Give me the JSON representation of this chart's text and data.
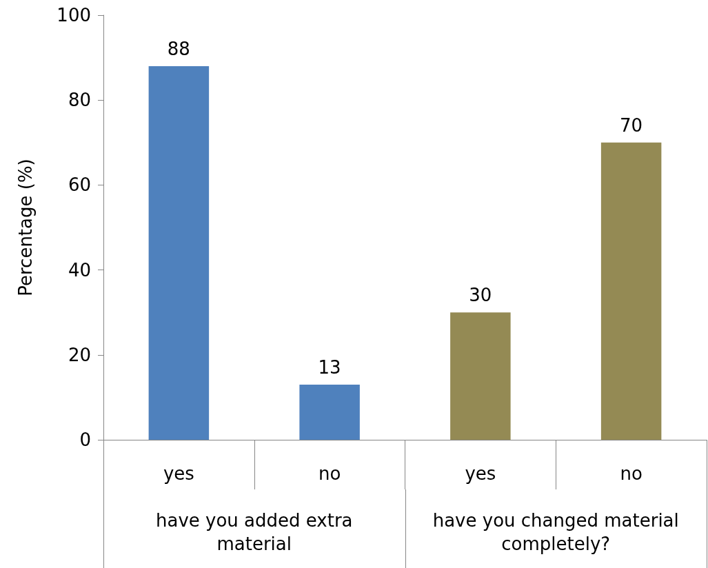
{
  "chart_data": {
    "type": "bar",
    "ylabel": "Percentage (%)",
    "categories": [
      "yes",
      "no",
      "yes",
      "no"
    ],
    "values": [
      88,
      13,
      30,
      70
    ],
    "colors": [
      "#4f81bd",
      "#4f81bd",
      "#948a54",
      "#948a54"
    ],
    "ylim": [
      0,
      100
    ],
    "yticks": [
      0,
      20,
      40,
      60,
      80,
      100
    ],
    "data_labels": true,
    "grid": false,
    "annotations": [
      "have you added extra material",
      "have you changed material completely?"
    ]
  }
}
